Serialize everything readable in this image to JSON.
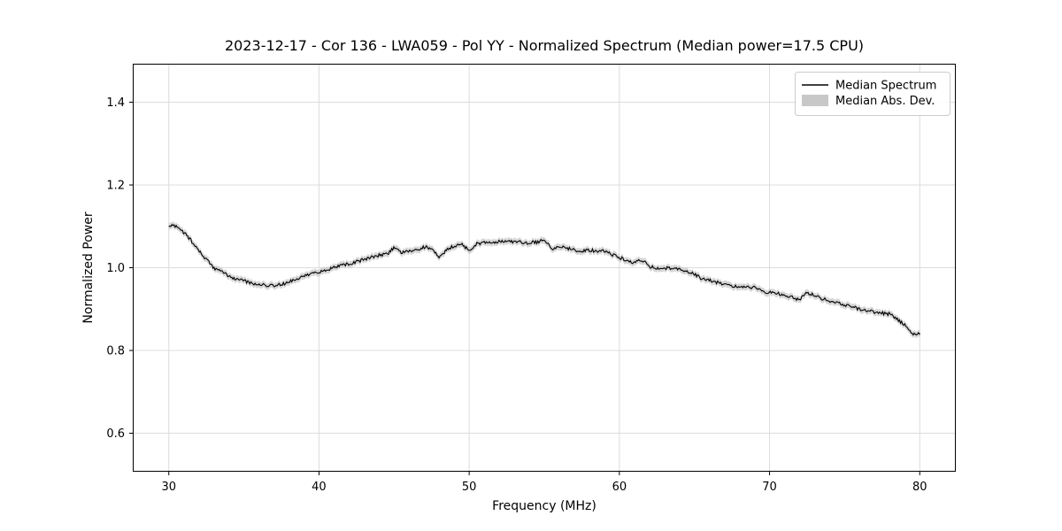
{
  "page": {
    "background": "#ffffff"
  },
  "chart_data": {
    "type": "line",
    "title": "2023-12-17 - Cor 136 - LWA059 - Pol YY - Normalized Spectrum (Median power=17.5 CPU)",
    "xlabel": "Frequency (MHz)",
    "ylabel": "Normalized Power",
    "xlim": [
      27.6,
      82.4
    ],
    "ylim": [
      0.507,
      1.493
    ],
    "xticks": [
      30,
      40,
      50,
      60,
      70,
      80
    ],
    "yticks": [
      0.6,
      0.8,
      1.0,
      1.2,
      1.4
    ],
    "grid": true,
    "legend": {
      "position": "upper right",
      "entries": [
        {
          "label": "Median Spectrum",
          "type": "line",
          "color": "#000000"
        },
        {
          "label": "Median Abs. Dev.",
          "type": "patch",
          "color": "#c8c8c8"
        }
      ]
    },
    "noise_amplitude": 0.004,
    "mad_halfwidth": 0.008,
    "style": {
      "line": "#000000",
      "band": "#c8c8c8",
      "grid": "#dcdcdc",
      "spine": "#000000",
      "legend_border": "#cccccc"
    },
    "series": [
      {
        "name": "Median Spectrum",
        "color": "#000000",
        "x": [
          30,
          30.5,
          31,
          31.5,
          32,
          32.5,
          33,
          33.5,
          34,
          34.5,
          35,
          35.5,
          36,
          36.5,
          37,
          37.5,
          38,
          38.5,
          39,
          39.5,
          40,
          40.5,
          41,
          41.5,
          42,
          42.5,
          43,
          43.5,
          44,
          44.5,
          45,
          45.5,
          46,
          46.5,
          47,
          47.5,
          48,
          48.5,
          49,
          49.5,
          50,
          50.5,
          51,
          51.5,
          52,
          52.5,
          53,
          53.5,
          54,
          54.5,
          55,
          55.5,
          56,
          56.5,
          57,
          57.5,
          58,
          58.5,
          59,
          59.5,
          60,
          60.5,
          61,
          61.5,
          62,
          62.5,
          63,
          63.5,
          64,
          64.5,
          65,
          65.5,
          66,
          66.5,
          67,
          67.5,
          68,
          68.5,
          69,
          69.5,
          70,
          70.5,
          71,
          71.5,
          72,
          72.5,
          73,
          73.5,
          74,
          74.5,
          75,
          75.5,
          76,
          76.5,
          77,
          77.5,
          78,
          78.5,
          79,
          79.5,
          80
        ],
        "y": [
          1.1,
          1.102,
          1.085,
          1.065,
          1.04,
          1.02,
          1.0,
          0.99,
          0.98,
          0.972,
          0.968,
          0.962,
          0.96,
          0.958,
          0.958,
          0.96,
          0.965,
          0.972,
          0.98,
          0.985,
          0.99,
          0.995,
          1.0,
          1.005,
          1.01,
          1.015,
          1.02,
          1.025,
          1.03,
          1.032,
          1.048,
          1.035,
          1.04,
          1.042,
          1.05,
          1.048,
          1.022,
          1.045,
          1.052,
          1.058,
          1.04,
          1.058,
          1.06,
          1.062,
          1.063,
          1.065,
          1.063,
          1.062,
          1.06,
          1.062,
          1.068,
          1.045,
          1.05,
          1.048,
          1.042,
          1.04,
          1.043,
          1.04,
          1.04,
          1.032,
          1.025,
          1.018,
          1.012,
          1.02,
          1.003,
          0.998,
          1.0,
          0.998,
          0.995,
          0.99,
          0.985,
          0.972,
          0.97,
          0.965,
          0.96,
          0.956,
          0.955,
          0.955,
          0.952,
          0.942,
          0.94,
          0.938,
          0.935,
          0.928,
          0.922,
          0.94,
          0.932,
          0.925,
          0.92,
          0.915,
          0.91,
          0.905,
          0.9,
          0.896,
          0.893,
          0.89,
          0.888,
          0.875,
          0.862,
          0.838,
          0.842
        ]
      }
    ]
  }
}
